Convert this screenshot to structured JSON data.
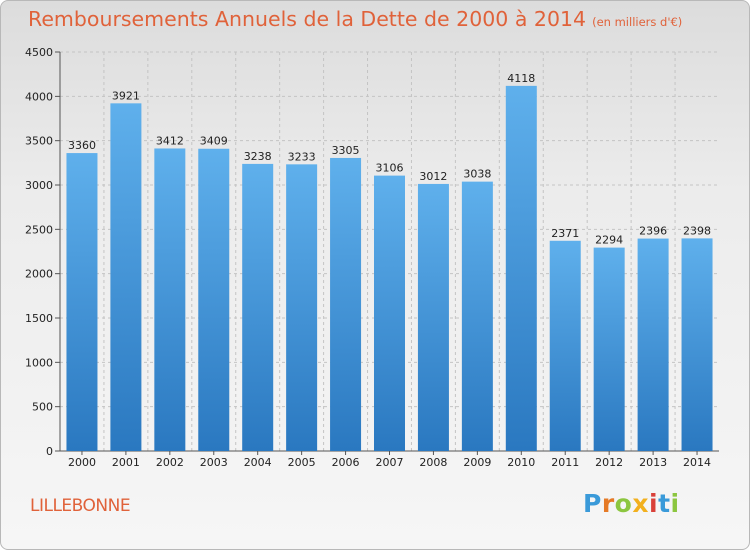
{
  "title": "Remboursements Annuels de la Dette de 2000 à 2014",
  "subtitle": "(en milliers d'€)",
  "commune": "LILLEBONNE",
  "logo": {
    "letters": [
      "P",
      "r",
      "o",
      "x",
      "i",
      "t",
      "i"
    ],
    "colors": [
      "#3a9ad9",
      "#e57a26",
      "#8cc63f",
      "#f2b01e",
      "#d9413a",
      "#3a9ad9",
      "#8cc63f"
    ]
  },
  "chart_data": {
    "type": "bar",
    "title": "Remboursements Annuels de la Dette de 2000 à 2014",
    "xlabel": "",
    "ylabel": "",
    "categories": [
      "2000",
      "2001",
      "2002",
      "2003",
      "2004",
      "2005",
      "2006",
      "2007",
      "2008",
      "2009",
      "2010",
      "2011",
      "2012",
      "2013",
      "2014"
    ],
    "values": [
      3360,
      3921,
      3412,
      3409,
      3238,
      3233,
      3305,
      3106,
      3012,
      3038,
      4118,
      2371,
      2294,
      2396,
      2398
    ],
    "ylim": [
      0,
      4500
    ],
    "yticks": [
      0,
      500,
      1000,
      1500,
      2000,
      2500,
      3000,
      3500,
      4000,
      4500
    ],
    "grid": true,
    "legend": "none",
    "colors": {
      "bar": "#3f92d6",
      "bar_light": "#5fb0ec",
      "bar_dark": "#2a78c0"
    }
  }
}
